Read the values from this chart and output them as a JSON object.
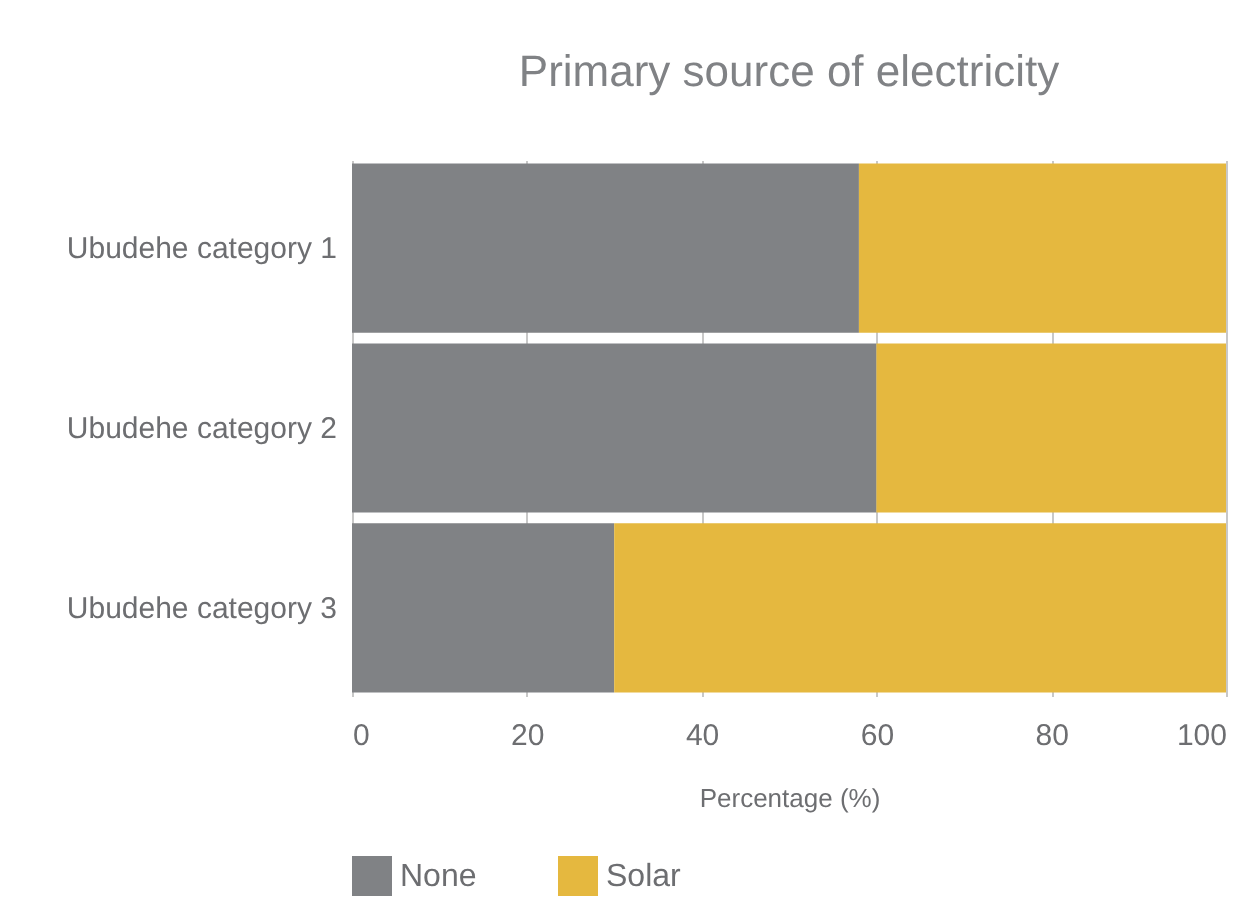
{
  "chart_data": {
    "type": "bar",
    "orientation": "horizontal",
    "stacked": true,
    "title": "Primary source of electricity",
    "xlabel": "Percentage (%)",
    "categories": [
      "Ubudehe category 1",
      "Ubudehe category 2",
      "Ubudehe category 3"
    ],
    "series": [
      {
        "name": "None",
        "color": "#808285",
        "values": [
          58,
          60,
          30
        ]
      },
      {
        "name": "Solar",
        "color": "#e5b83f",
        "values": [
          42,
          40,
          70
        ]
      }
    ],
    "xlim": [
      0,
      100
    ],
    "xticks": [
      0,
      20,
      40,
      60,
      80,
      100
    ],
    "grid": "x",
    "legend": "bottom"
  }
}
